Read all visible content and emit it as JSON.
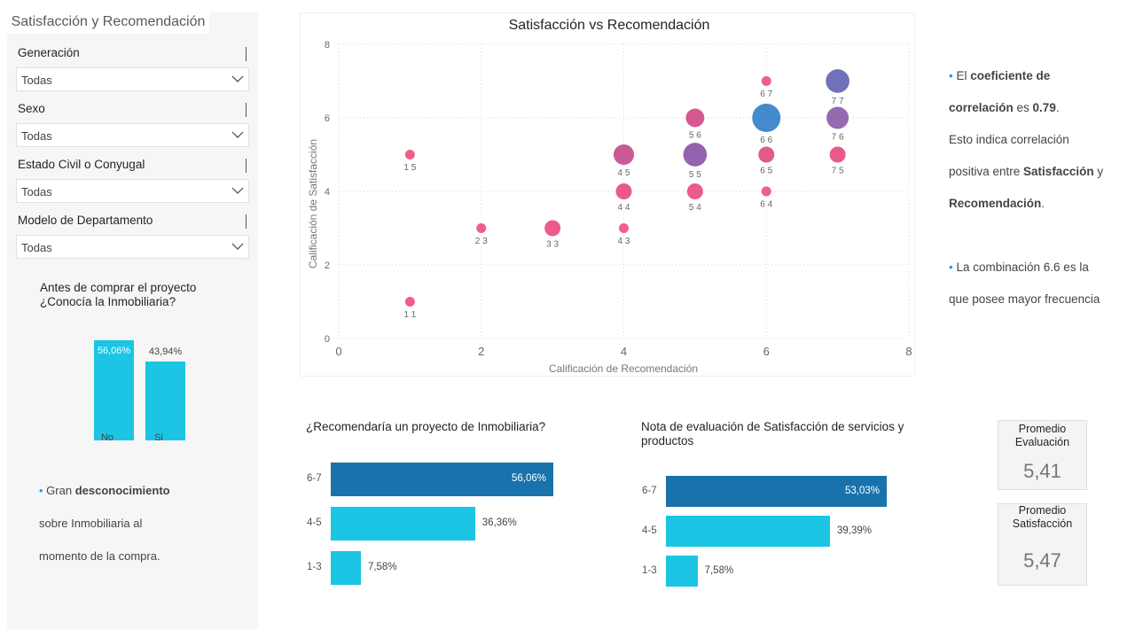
{
  "filters": {
    "title": "Satisfacción y Recomendación",
    "slicers": [
      {
        "label": "Generación",
        "value": "Todas"
      },
      {
        "label": "Sexo",
        "value": "Todas"
      },
      {
        "label": "Estado Civil o Conyugal",
        "value": "Todas"
      },
      {
        "label": "Modelo de Departamento",
        "value": "Todas"
      }
    ]
  },
  "known_chart": {
    "title_line1": "Antes de comprar el proyecto",
    "title_line2": "¿Conocía la Inmobiliaria?",
    "bars": [
      {
        "category": "No",
        "percent": 56.06,
        "label": "56,06%"
      },
      {
        "category": "Si",
        "percent": 43.94,
        "label": "43,94%"
      }
    ]
  },
  "left_note": {
    "line1_prefix": "Gran ",
    "line1_bold": "desconocimiento",
    "line2": "sobre Inmobiliaria al",
    "line3": "momento de la compra."
  },
  "chart_data": [
    {
      "type": "scatter",
      "title": "Satisfacción vs Recomendación",
      "xlabel": "Calificación de Recomendación",
      "ylabel": "Calificación de Satisfacción",
      "xlim": [
        0,
        8
      ],
      "ylim": [
        0,
        8
      ],
      "x_ticks": [
        "0",
        "2",
        "4",
        "6",
        "8"
      ],
      "y_ticks": [
        "0",
        "2",
        "4",
        "6",
        "8"
      ],
      "grid": true,
      "points": [
        {
          "x": 1,
          "y": 1,
          "label": "1 1",
          "size": 1,
          "color": "#ef4c7b"
        },
        {
          "x": 1,
          "y": 5,
          "label": "1 5",
          "size": 1,
          "color": "#ef4c7b"
        },
        {
          "x": 2,
          "y": 3,
          "label": "2 3",
          "size": 1,
          "color": "#ef4c7b"
        },
        {
          "x": 3,
          "y": 3,
          "label": "3 3",
          "size": 2,
          "color": "#ea4a7d"
        },
        {
          "x": 4,
          "y": 3,
          "label": "4 3",
          "size": 1,
          "color": "#ef4c7b"
        },
        {
          "x": 4,
          "y": 4,
          "label": "4 4",
          "size": 2,
          "color": "#e5487f"
        },
        {
          "x": 4,
          "y": 5,
          "label": "4 5",
          "size": 4,
          "color": "#c44888"
        },
        {
          "x": 5,
          "y": 4,
          "label": "5 4",
          "size": 2,
          "color": "#ea4a7d"
        },
        {
          "x": 5,
          "y": 6,
          "label": "5 6",
          "size": 3,
          "color": "#cf4784"
        },
        {
          "x": 5,
          "y": 5,
          "label": "5 5",
          "size": 6,
          "color": "#8a51a5"
        },
        {
          "x": 6,
          "y": 7,
          "label": "6 7",
          "size": 1,
          "color": "#ef4c7b"
        },
        {
          "x": 6,
          "y": 6,
          "label": "6 6",
          "size": 10,
          "color": "#2f7dc9"
        },
        {
          "x": 6,
          "y": 5,
          "label": "6 5",
          "size": 2,
          "color": "#dd4880"
        },
        {
          "x": 6,
          "y": 4,
          "label": "6 4",
          "size": 1,
          "color": "#ef4c7b"
        },
        {
          "x": 7,
          "y": 7,
          "label": "7 7",
          "size": 6,
          "color": "#6262b4"
        },
        {
          "x": 7,
          "y": 6,
          "label": "7 6",
          "size": 5,
          "color": "#8a5aa8"
        },
        {
          "x": 7,
          "y": 5,
          "label": "7 5",
          "size": 2,
          "color": "#e5487f"
        }
      ]
    },
    {
      "type": "bar",
      "title": "¿Recomendaría un proyecto de Inmobiliaria?",
      "categories": [
        "6-7",
        "4-5",
        "1-3"
      ],
      "values": [
        56.06,
        36.36,
        7.58
      ],
      "labels": [
        "56,06%",
        "36,36%",
        "7,58%"
      ],
      "colors": [
        "#1a72ac",
        "#1bc5e3",
        "#1bc5e3"
      ]
    },
    {
      "type": "bar",
      "title_line1": "Nota de evaluación de Satisfacción de servicios y",
      "title_line2": "productos",
      "categories": [
        "6-7",
        "4-5",
        "1-3"
      ],
      "values": [
        53.03,
        39.39,
        7.58
      ],
      "labels": [
        "53,03%",
        "39,39%",
        "7,58%"
      ],
      "colors": [
        "#1a72ac",
        "#1bc5e3",
        "#1bc5e3"
      ]
    }
  ],
  "right_note": {
    "l1_prefix": "El ",
    "l1_bold": "coeficiente de",
    "l2_bold": "correlación",
    "l2_mid": " es ",
    "l2_bold2": "0.79",
    "l2_end": ".",
    "l3": "Esto indica correlación",
    "l4_prefix": "positiva entre ",
    "l4_bold": "Satisfacción",
    "l4_end": " y",
    "l5_bold": "Recomendación",
    "l5_end": ".",
    "l6": "La combinación 6.6 es la",
    "l7": "que posee mayor frecuencia"
  },
  "kpis": [
    {
      "title_line1": "Promedio",
      "title_line2": "Evaluación",
      "value": "5,41"
    },
    {
      "title_line1": "Promedio",
      "title_line2": "Satisfacción",
      "value": "5,47"
    }
  ]
}
